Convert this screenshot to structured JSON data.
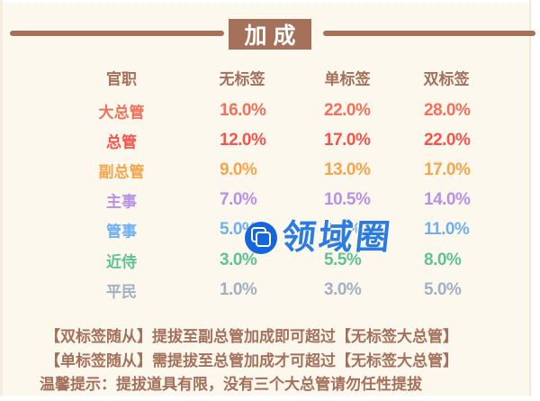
{
  "page": {
    "panel_bg": "#fdf8ee",
    "accent_brown": "#a6715a",
    "text_brown": "#a5705a"
  },
  "title": {
    "text": "加成"
  },
  "table": {
    "headers": [
      {
        "label": "官职"
      },
      {
        "label": "无标签"
      },
      {
        "label": "单标签"
      },
      {
        "label": "双标签"
      }
    ],
    "header_color": "#a5705a",
    "rows": [
      {
        "rank": "大总管",
        "color": "#f3705b",
        "no_tag": "16.0%",
        "single_tag": "22.0%",
        "double_tag": "28.0%"
      },
      {
        "rank": "总管",
        "color": "#f3544c",
        "no_tag": "12.0%",
        "single_tag": "17.0%",
        "double_tag": "22.0%"
      },
      {
        "rank": "副总管",
        "color": "#f7a44b",
        "no_tag": "9.0%",
        "single_tag": "13.0%",
        "double_tag": "17.0%"
      },
      {
        "rank": "主事",
        "color": "#b791e7",
        "no_tag": "7.0%",
        "single_tag": "10.5%",
        "double_tag": "14.0%"
      },
      {
        "rank": "管事",
        "color": "#6fb0f4",
        "no_tag": "5.0%",
        "single_tag": "8.0%",
        "double_tag": "11.0%"
      },
      {
        "rank": "近侍",
        "color": "#5fc292",
        "no_tag": "3.0%",
        "single_tag": "5.5%",
        "double_tag": "8.0%"
      },
      {
        "rank": "平民",
        "color": "#a2b0c3",
        "no_tag": "1.0%",
        "single_tag": "3.0%",
        "double_tag": "5.0%"
      }
    ]
  },
  "notes": {
    "color": "#a5705a",
    "line1": "【双标签随从】提拔至副总管加成即可超过【无标签大总管】",
    "line2": "【单标签随从】需提拔至总管加成才可超过【无标签大总管】",
    "tip": "温馨提示：提拔道具有限，没有三个大总管请勿任性提拔"
  },
  "watermark": {
    "text": "领域圈",
    "text_color": "#2b7ce0",
    "logo_color": "#1565dc",
    "logo_icon": "overlapping-squares-icon"
  }
}
